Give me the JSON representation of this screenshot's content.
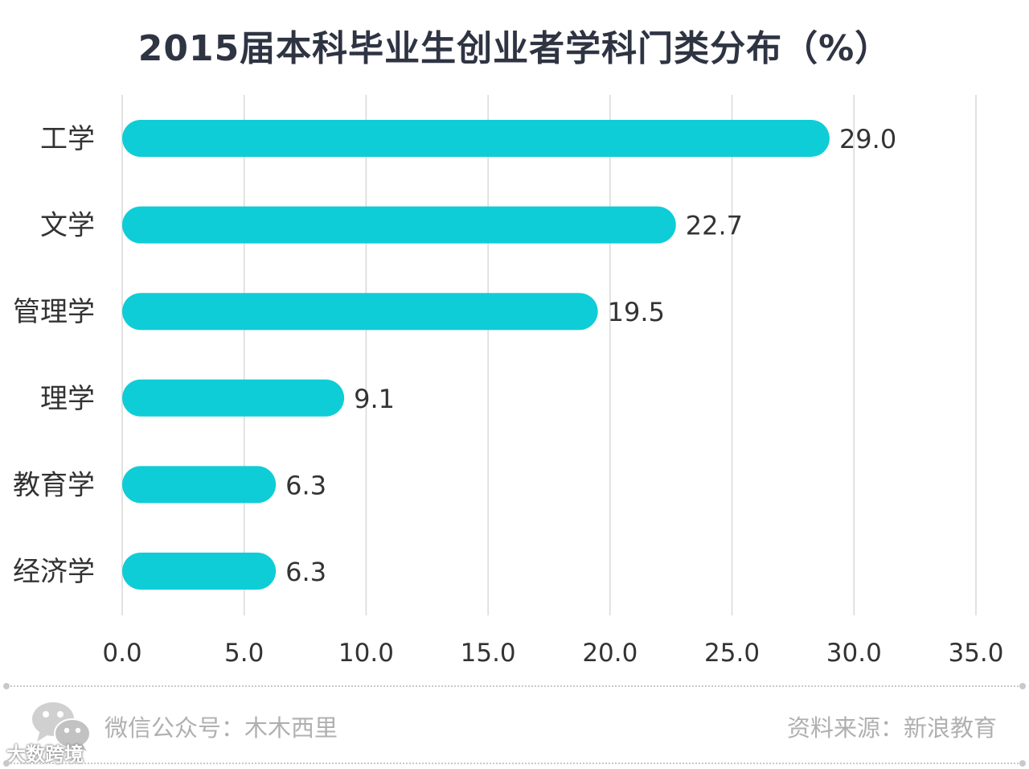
{
  "chart_data": {
    "type": "bar",
    "orientation": "horizontal",
    "title": "2015届本科毕业生创业者学科门类分布（%）",
    "categories": [
      "工学",
      "文学",
      "管理学",
      "理学",
      "教育学",
      "经济学"
    ],
    "values": [
      29.0,
      22.7,
      19.5,
      9.1,
      6.3,
      6.3
    ],
    "value_labels": [
      "29.0",
      "22.7",
      "19.5",
      "9.1",
      "6.3",
      "6.3"
    ],
    "xlim": [
      0,
      35
    ],
    "ticks": [
      "0.0",
      "5.0",
      "10.0",
      "15.0",
      "20.0",
      "25.0",
      "30.0",
      "35.0"
    ],
    "tick_values": [
      0,
      5,
      10,
      15,
      20,
      25,
      30,
      35
    ],
    "grid": true,
    "bar_color": "#0fcdd6",
    "grid_color": "#d9d9d9"
  },
  "footer": {
    "left": "微信公众号：木木西里",
    "right": "资料来源：新浪教育",
    "watermark": "大数跨境"
  },
  "icons": {
    "wechat": "wechat-icon"
  }
}
